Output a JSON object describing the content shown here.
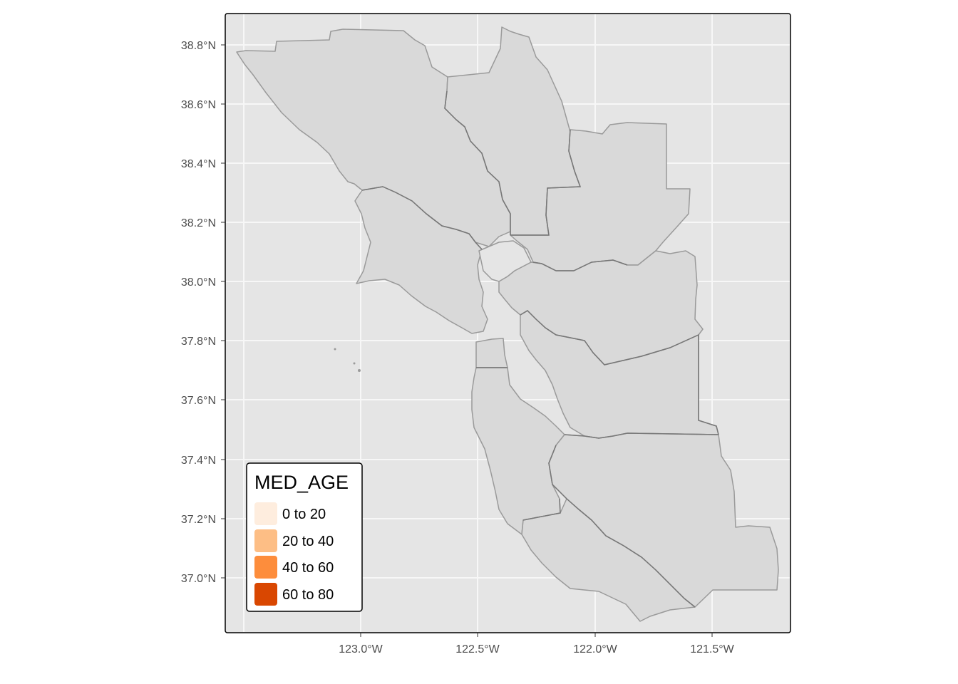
{
  "map": {
    "x_ticks": [
      "123.0°W",
      "122.5°W",
      "122.0°W",
      "121.5°W"
    ],
    "y_ticks": [
      "38.8°N",
      "38.6°N",
      "38.4°N",
      "38.2°N",
      "38.0°N",
      "37.8°N",
      "37.6°N",
      "37.4°N",
      "37.2°N",
      "37.0°N"
    ],
    "background_color": "#e5e5e5",
    "grid_color": "#f7f7f7",
    "region_fill": "#d9d9d9",
    "region_stroke": "#9a9a9a",
    "county_border": "#777777"
  },
  "legend": {
    "title": "MED_AGE",
    "items": [
      {
        "label": "0 to 20",
        "color": "#feedde"
      },
      {
        "label": "20 to 40",
        "color": "#fdbe85"
      },
      {
        "label": "40 to 60",
        "color": "#fd8d3c"
      },
      {
        "label": "60 to 80",
        "color": "#d94701"
      }
    ]
  }
}
